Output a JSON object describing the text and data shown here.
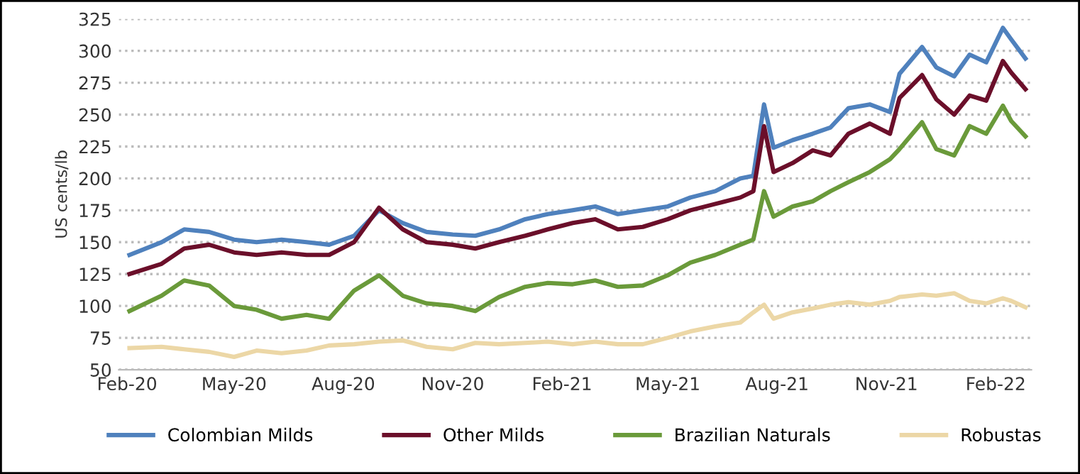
{
  "chart_data": {
    "type": "line",
    "ylabel": "US cents/lb",
    "x": [
      "2020-02-03",
      "2020-03-01",
      "2020-03-20",
      "2020-04-10",
      "2020-05-01",
      "2020-05-20",
      "2020-06-10",
      "2020-07-01",
      "2020-07-20",
      "2020-08-10",
      "2020-08-31",
      "2020-09-20",
      "2020-10-10",
      "2020-11-01",
      "2020-11-20",
      "2020-12-10",
      "2021-01-01",
      "2021-01-20",
      "2021-02-10",
      "2021-03-01",
      "2021-03-20",
      "2021-04-10",
      "2021-05-01",
      "2021-05-20",
      "2021-06-10",
      "2021-07-01",
      "2021-07-12",
      "2021-07-21",
      "2021-07-29",
      "2021-08-14",
      "2021-08-31",
      "2021-09-15",
      "2021-09-30",
      "2021-10-18",
      "2021-11-04",
      "2021-11-12",
      "2021-12-01",
      "2021-12-13",
      "2021-12-28",
      "2022-01-10",
      "2022-01-24",
      "2022-02-07",
      "2022-02-14",
      "2022-02-26"
    ],
    "series": [
      {
        "name": "Colombian Milds",
        "color": "#4f81bd",
        "values": [
          140,
          150,
          160,
          158,
          152,
          150,
          152,
          150,
          148,
          155,
          175,
          165,
          158,
          156,
          155,
          160,
          168,
          172,
          175,
          178,
          172,
          175,
          178,
          185,
          190,
          200,
          202,
          258,
          224,
          230,
          235,
          240,
          255,
          258,
          252,
          282,
          303,
          287,
          280,
          297,
          291,
          318,
          309,
          294
        ]
      },
      {
        "name": "Other Milds",
        "color": "#6b0f2a",
        "values": [
          125,
          133,
          145,
          148,
          142,
          140,
          142,
          140,
          140,
          150,
          177,
          160,
          150,
          148,
          145,
          150,
          155,
          160,
          165,
          168,
          160,
          162,
          168,
          175,
          180,
          185,
          190,
          241,
          205,
          212,
          222,
          218,
          235,
          243,
          235,
          263,
          281,
          262,
          250,
          265,
          261,
          292,
          283,
          270
        ]
      },
      {
        "name": "Brazilian Naturals",
        "color": "#6a9a3a",
        "values": [
          96,
          108,
          120,
          116,
          100,
          97,
          90,
          93,
          90,
          112,
          124,
          108,
          102,
          100,
          96,
          107,
          115,
          118,
          117,
          120,
          115,
          116,
          124,
          134,
          140,
          148,
          152,
          190,
          170,
          178,
          182,
          190,
          197,
          205,
          215,
          223,
          244,
          223,
          218,
          241,
          235,
          257,
          245,
          233
        ]
      },
      {
        "name": "Robustas",
        "color": "#ecd7a6",
        "values": [
          67,
          68,
          66,
          64,
          60,
          65,
          63,
          65,
          69,
          70,
          72,
          73,
          68,
          66,
          71,
          70,
          71,
          72,
          70,
          72,
          70,
          70,
          75,
          80,
          84,
          87,
          95,
          101,
          90,
          95,
          98,
          101,
          103,
          101,
          104,
          107,
          109,
          108,
          110,
          104,
          102,
          106,
          104,
          99
        ]
      }
    ],
    "xlim": [
      "2020-01-25",
      "2022-03-03"
    ],
    "xticks": [
      {
        "value": "2020-02-01",
        "label": "Feb-20"
      },
      {
        "value": "2020-05-01",
        "label": "May-20"
      },
      {
        "value": "2020-08-01",
        "label": "Aug-20"
      },
      {
        "value": "2020-11-01",
        "label": "Nov-20"
      },
      {
        "value": "2021-02-01",
        "label": "Feb-21"
      },
      {
        "value": "2021-05-01",
        "label": "May-21"
      },
      {
        "value": "2021-08-01",
        "label": "Aug-21"
      },
      {
        "value": "2021-11-01",
        "label": "Nov-21"
      },
      {
        "value": "2022-02-01",
        "label": "Feb-22"
      }
    ],
    "ylim": [
      50,
      325
    ],
    "yticks": [
      50,
      75,
      100,
      125,
      150,
      175,
      200,
      225,
      250,
      275,
      300,
      325
    ],
    "grid": "y",
    "legend": "bottom",
    "marker": "none",
    "line_style": "solid"
  }
}
